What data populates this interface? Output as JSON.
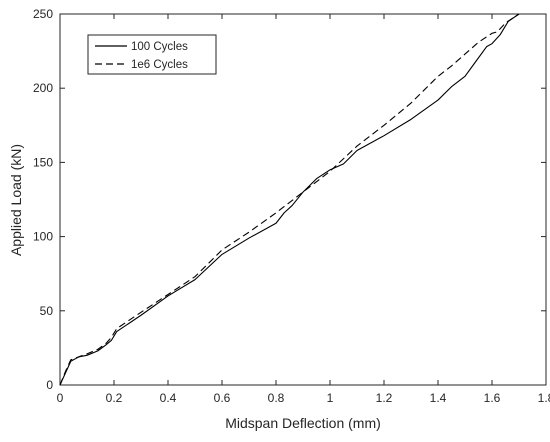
{
  "chart_data": {
    "type": "line",
    "xlabel": "Midspan Deflection (mm)",
    "ylabel": "Applied Load (kN)",
    "xlim": [
      0,
      1.8
    ],
    "ylim": [
      0,
      250
    ],
    "xticks": [
      0,
      0.2,
      0.4,
      0.6,
      0.8,
      1,
      1.2,
      1.4,
      1.6,
      1.8
    ],
    "xtick_labels": [
      "0",
      "0.2",
      "0.4",
      "0.6",
      "0.8",
      "1",
      "1.2",
      "1.4",
      "1.6",
      "1.8"
    ],
    "yticks": [
      0,
      50,
      100,
      150,
      200,
      250
    ],
    "ytick_labels": [
      "0",
      "50",
      "100",
      "150",
      "200",
      "250"
    ],
    "grid": false,
    "legend_position": "top-left",
    "series": [
      {
        "name": "100 Cycles",
        "style": "solid",
        "color": "#000000",
        "x": [
          0,
          0.02,
          0.04,
          0.07,
          0.1,
          0.14,
          0.17,
          0.19,
          0.21,
          0.3,
          0.4,
          0.5,
          0.6,
          0.7,
          0.8,
          0.83,
          0.86,
          0.9,
          0.95,
          1.0,
          1.05,
          1.1,
          1.2,
          1.3,
          1.4,
          1.45,
          1.5,
          1.54,
          1.58,
          1.6,
          1.63,
          1.66,
          1.7
        ],
        "y": [
          0,
          8,
          16,
          19,
          20,
          23,
          27,
          30,
          36,
          47,
          60,
          71,
          88,
          99,
          109,
          116,
          121,
          130,
          139,
          145,
          149,
          158,
          168,
          179,
          192,
          201,
          208,
          218,
          228,
          230,
          236,
          245,
          250
        ]
      },
      {
        "name": "1e6 Cycles",
        "style": "dashed",
        "color": "#000000",
        "x": [
          0,
          0.02,
          0.04,
          0.07,
          0.1,
          0.14,
          0.17,
          0.19,
          0.21,
          0.3,
          0.4,
          0.5,
          0.6,
          0.7,
          0.8,
          0.9,
          1.0,
          1.1,
          1.2,
          1.3,
          1.4,
          1.45,
          1.5,
          1.55,
          1.6,
          1.62,
          1.65,
          1.7
        ],
        "y": [
          0,
          9,
          17,
          19,
          21,
          24,
          28,
          32,
          38,
          49,
          61,
          73,
          91,
          103,
          116,
          130,
          144,
          161,
          175,
          190,
          208,
          215,
          223,
          231,
          237,
          238,
          244,
          250
        ]
      }
    ]
  },
  "colors": {
    "axis": "#262626",
    "line": "#000000",
    "background": "#ffffff"
  }
}
